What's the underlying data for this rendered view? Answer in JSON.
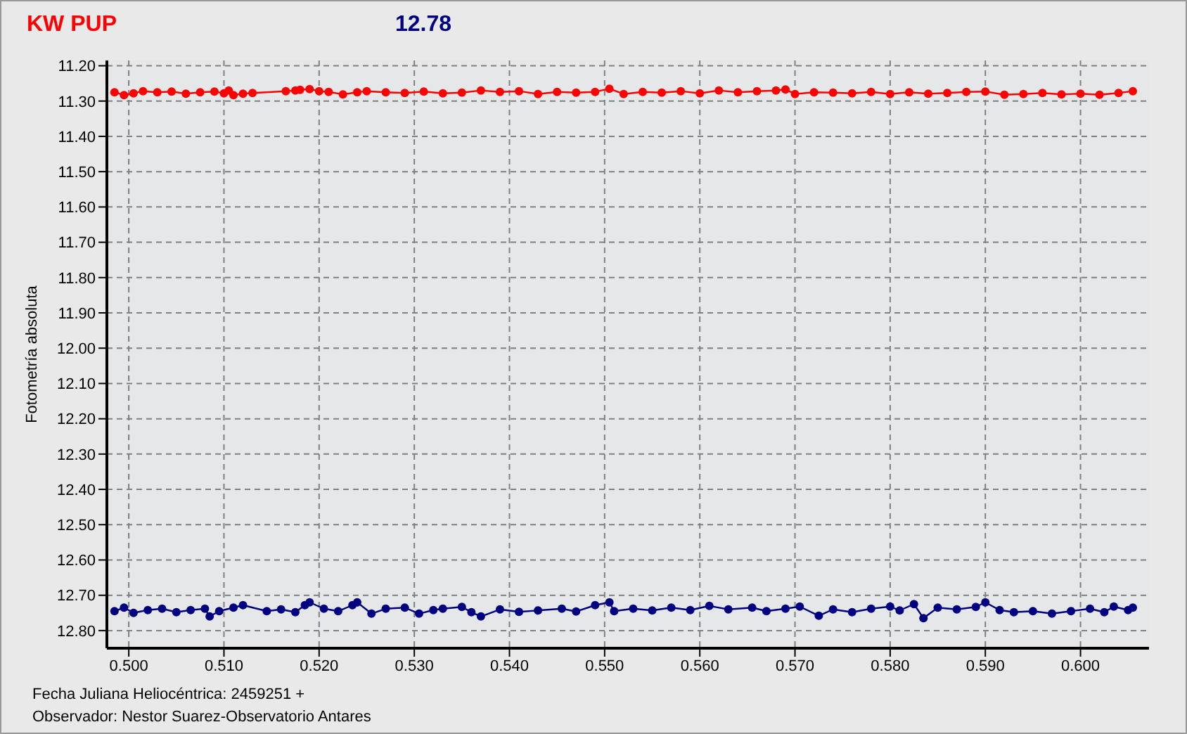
{
  "chart_data": {
    "type": "line",
    "title": "KW PUP",
    "subtitle": "12.78",
    "xlabel": "Fecha Juliana Heliocéntrica: 2459251 +",
    "ylabel": "Fotometría absoluta",
    "annotations": [
      "Observador: Nestor Suarez-Observatorio Antares"
    ],
    "xlim": [
      0.4977,
      0.6072
    ],
    "ylim": [
      12.85,
      11.185
    ],
    "xticks": [
      {
        "value": 0.5,
        "label": "0.500"
      },
      {
        "value": 0.51,
        "label": "0.510"
      },
      {
        "value": 0.52,
        "label": "0.520"
      },
      {
        "value": 0.53,
        "label": "0.530"
      },
      {
        "value": 0.54,
        "label": "0.540"
      },
      {
        "value": 0.55,
        "label": "0.550"
      },
      {
        "value": 0.56,
        "label": "0.560"
      },
      {
        "value": 0.57,
        "label": "0.570"
      },
      {
        "value": 0.58,
        "label": "0.580"
      },
      {
        "value": 0.59,
        "label": "0.590"
      },
      {
        "value": 0.6,
        "label": "0.600"
      }
    ],
    "yticks": [
      {
        "value": 11.2,
        "label": "11.20"
      },
      {
        "value": 11.3,
        "label": "11.30"
      },
      {
        "value": 11.4,
        "label": "11.40"
      },
      {
        "value": 11.5,
        "label": "11.50"
      },
      {
        "value": 11.6,
        "label": "11.60"
      },
      {
        "value": 11.7,
        "label": "11.70"
      },
      {
        "value": 11.8,
        "label": "11.80"
      },
      {
        "value": 11.9,
        "label": "11.90"
      },
      {
        "value": 12.0,
        "label": "12.00"
      },
      {
        "value": 12.1,
        "label": "12.10"
      },
      {
        "value": 12.2,
        "label": "12.20"
      },
      {
        "value": 12.3,
        "label": "12.30"
      },
      {
        "value": 12.4,
        "label": "12.40"
      },
      {
        "value": 12.5,
        "label": "12.50"
      },
      {
        "value": 12.6,
        "label": "12.60"
      },
      {
        "value": 12.7,
        "label": "12.70"
      },
      {
        "value": 12.8,
        "label": "12.80"
      }
    ],
    "grid": true,
    "marker": "circle",
    "line_style": "solid",
    "series": [
      {
        "color": "#ff0000",
        "x": [
          0.4985,
          0.4995,
          0.5005,
          0.5015,
          0.503,
          0.5045,
          0.506,
          0.5075,
          0.509,
          0.51,
          0.5105,
          0.511,
          0.512,
          0.513,
          0.5165,
          0.5175,
          0.518,
          0.519,
          0.52,
          0.521,
          0.5225,
          0.524,
          0.525,
          0.527,
          0.529,
          0.531,
          0.533,
          0.535,
          0.537,
          0.539,
          0.541,
          0.543,
          0.545,
          0.547,
          0.549,
          0.5505,
          0.552,
          0.554,
          0.556,
          0.558,
          0.56,
          0.562,
          0.564,
          0.566,
          0.568,
          0.569,
          0.57,
          0.572,
          0.574,
          0.576,
          0.578,
          0.58,
          0.582,
          0.584,
          0.586,
          0.588,
          0.59,
          0.592,
          0.594,
          0.596,
          0.598,
          0.6,
          0.602,
          0.604,
          0.6055
        ],
        "values": [
          11.275,
          11.283,
          11.278,
          11.272,
          11.275,
          11.273,
          11.279,
          11.275,
          11.273,
          11.278,
          11.27,
          11.283,
          11.279,
          11.277,
          11.272,
          11.27,
          11.268,
          11.266,
          11.272,
          11.274,
          11.281,
          11.275,
          11.272,
          11.275,
          11.277,
          11.273,
          11.278,
          11.276,
          11.27,
          11.274,
          11.272,
          11.28,
          11.274,
          11.276,
          11.274,
          11.265,
          11.28,
          11.274,
          11.276,
          11.272,
          11.278,
          11.27,
          11.275,
          11.272,
          11.27,
          11.267,
          11.28,
          11.275,
          11.276,
          11.278,
          11.274,
          11.28,
          11.275,
          11.279,
          11.277,
          11.274,
          11.273,
          11.282,
          11.28,
          11.277,
          11.281,
          11.279,
          11.282,
          11.277,
          11.272
        ]
      },
      {
        "color": "#000080",
        "x": [
          0.4985,
          0.4995,
          0.5005,
          0.502,
          0.5035,
          0.505,
          0.5065,
          0.508,
          0.5085,
          0.5095,
          0.511,
          0.512,
          0.5145,
          0.516,
          0.5175,
          0.5185,
          0.519,
          0.5205,
          0.522,
          0.5235,
          0.524,
          0.5255,
          0.527,
          0.529,
          0.5305,
          0.532,
          0.533,
          0.535,
          0.536,
          0.537,
          0.539,
          0.541,
          0.543,
          0.5455,
          0.547,
          0.549,
          0.5505,
          0.551,
          0.553,
          0.555,
          0.557,
          0.559,
          0.561,
          0.563,
          0.5655,
          0.567,
          0.569,
          0.5705,
          0.5725,
          0.574,
          0.576,
          0.578,
          0.58,
          0.581,
          0.5825,
          0.5835,
          0.585,
          0.587,
          0.589,
          0.59,
          0.5915,
          0.593,
          0.595,
          0.597,
          0.599,
          0.601,
          0.6025,
          0.6035,
          0.605,
          0.6055
        ],
        "values": [
          12.745,
          12.735,
          12.75,
          12.742,
          12.738,
          12.748,
          12.742,
          12.738,
          12.76,
          12.745,
          12.735,
          12.728,
          12.745,
          12.74,
          12.748,
          12.728,
          12.72,
          12.738,
          12.745,
          12.728,
          12.72,
          12.752,
          12.738,
          12.735,
          12.752,
          12.742,
          12.738,
          12.733,
          12.748,
          12.76,
          12.74,
          12.747,
          12.743,
          12.738,
          12.746,
          12.728,
          12.72,
          12.745,
          12.738,
          12.743,
          12.735,
          12.742,
          12.73,
          12.74,
          12.735,
          12.745,
          12.738,
          12.732,
          12.758,
          12.74,
          12.748,
          12.738,
          12.732,
          12.743,
          12.725,
          12.765,
          12.735,
          12.74,
          12.733,
          12.72,
          12.742,
          12.748,
          12.745,
          12.752,
          12.745,
          12.738,
          12.748,
          12.732,
          12.742,
          12.735
        ]
      }
    ]
  }
}
